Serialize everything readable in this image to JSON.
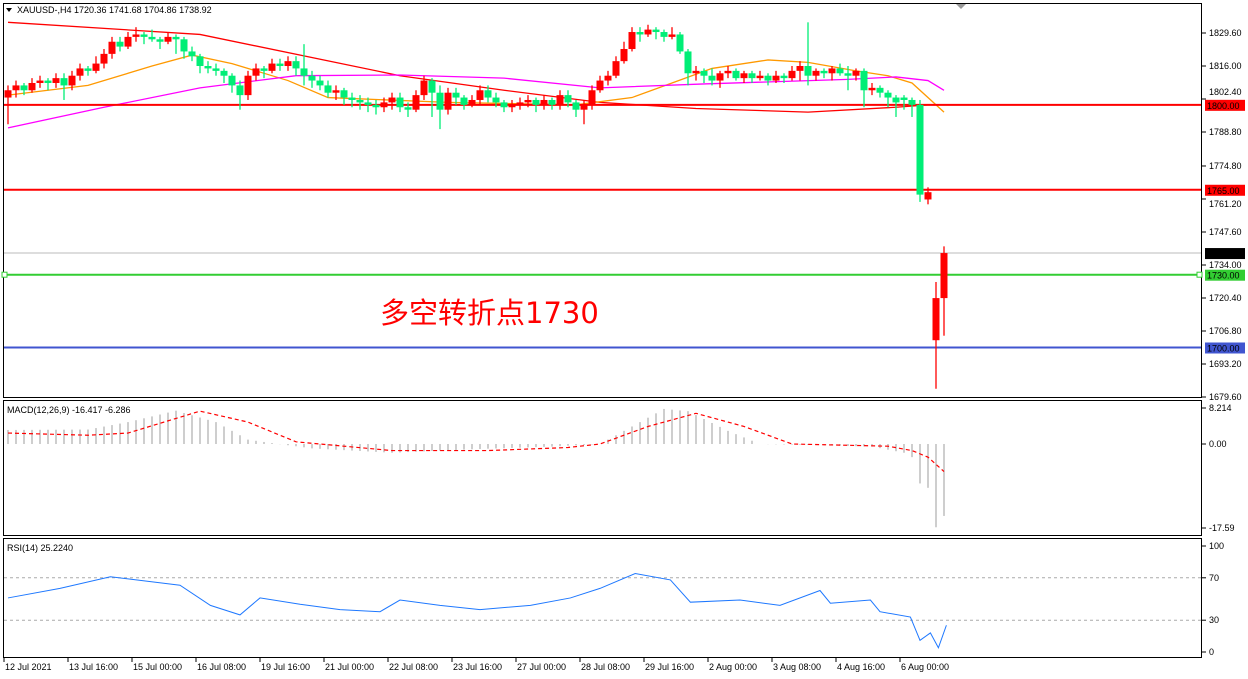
{
  "header": {
    "symbol": "XAUUSD-,H4",
    "open": "1720.36",
    "high": "1741.68",
    "low": "1704.86",
    "close": "1738.92"
  },
  "annotation": "多空转折点1730",
  "colors": {
    "bull": "#ff0000",
    "bear": "#00ee76",
    "ma_long": "#ff0000",
    "ma_short": "#ff9900",
    "ma_mid": "#ff00ff",
    "macd_hist": "#b4b4b4",
    "macd_signal": "#ff0000",
    "rsi": "#1e78ff"
  },
  "chart_data": [
    {
      "type": "candlestick",
      "title": "XAUUSD-,H4",
      "ylim": [
        1679.6,
        1836
      ],
      "y_ticks": [
        "1829.60",
        "1816.00",
        "1802.40",
        "1788.80",
        "1774.80",
        "1761.20",
        "1747.60",
        "1734.00",
        "1720.40",
        "1706.80",
        "1693.20",
        "1679.60"
      ],
      "x_ticks": [
        "12 Jul 2021",
        "13 Jul 16:00",
        "15 Jul 00:00",
        "16 Jul 08:00",
        "19 Jul 16:00",
        "21 Jul 00:00",
        "22 Jul 08:00",
        "23 Jul 16:00",
        "27 Jul 00:00",
        "28 Jul 08:00",
        "29 Jul 16:00",
        "2 Aug 00:00",
        "3 Aug 08:00",
        "4 Aug 16:00",
        "6 Aug 00:00"
      ],
      "ohlc": [
        [
          1803,
          1808,
          1792,
          1806
        ],
        [
          1806,
          1810,
          1803,
          1808
        ],
        [
          1808,
          1809,
          1804,
          1806
        ],
        [
          1806,
          1811,
          1805,
          1809
        ],
        [
          1809,
          1812,
          1807,
          1810
        ],
        [
          1810,
          1811,
          1806,
          1809
        ],
        [
          1809,
          1813,
          1807,
          1811
        ],
        [
          1811,
          1813,
          1802,
          1808
        ],
        [
          1808,
          1814,
          1806,
          1812
        ],
        [
          1812,
          1817,
          1810,
          1815
        ],
        [
          1815,
          1816,
          1812,
          1814
        ],
        [
          1814,
          1820,
          1813,
          1817
        ],
        [
          1817,
          1823,
          1815,
          1821
        ],
        [
          1821,
          1828,
          1819,
          1826
        ],
        [
          1826,
          1828,
          1822,
          1824
        ],
        [
          1824,
          1830,
          1823,
          1828
        ],
        [
          1828,
          1832,
          1826,
          1829
        ],
        [
          1829,
          1830,
          1825,
          1828
        ],
        [
          1828,
          1831,
          1826,
          1827
        ],
        [
          1827,
          1828,
          1823,
          1826
        ],
        [
          1826,
          1830,
          1825,
          1828
        ],
        [
          1828,
          1829,
          1821,
          1827
        ],
        [
          1827,
          1828,
          1819,
          1822
        ],
        [
          1822,
          1824,
          1818,
          1820
        ],
        [
          1820,
          1821,
          1813,
          1816
        ],
        [
          1816,
          1818,
          1813,
          1815
        ],
        [
          1815,
          1817,
          1812,
          1814
        ],
        [
          1814,
          1815,
          1809,
          1812
        ],
        [
          1812,
          1813,
          1805,
          1808
        ],
        [
          1808,
          1810,
          1798,
          1804
        ],
        [
          1804,
          1814,
          1802,
          1812
        ],
        [
          1812,
          1817,
          1810,
          1815
        ],
        [
          1815,
          1816,
          1811,
          1814
        ],
        [
          1814,
          1819,
          1813,
          1817
        ],
        [
          1817,
          1819,
          1814,
          1816
        ],
        [
          1816,
          1820,
          1814,
          1818
        ],
        [
          1818,
          1820,
          1812,
          1815
        ],
        [
          1815,
          1825,
          1808,
          1812
        ],
        [
          1812,
          1814,
          1807,
          1810
        ],
        [
          1810,
          1812,
          1806,
          1808
        ],
        [
          1808,
          1810,
          1803,
          1805
        ],
        [
          1805,
          1808,
          1802,
          1806
        ],
        [
          1806,
          1807,
          1800,
          1803
        ],
        [
          1803,
          1805,
          1799,
          1802
        ],
        [
          1802,
          1804,
          1798,
          1801
        ],
        [
          1801,
          1803,
          1797,
          1800
        ],
        [
          1800,
          1802,
          1796,
          1799
        ],
        [
          1799,
          1803,
          1797,
          1801
        ],
        [
          1801,
          1805,
          1798,
          1803
        ],
        [
          1803,
          1805,
          1797,
          1799
        ],
        [
          1799,
          1801,
          1795,
          1798
        ],
        [
          1798,
          1806,
          1797,
          1804
        ],
        [
          1804,
          1812,
          1802,
          1810
        ],
        [
          1810,
          1811,
          1795,
          1805
        ],
        [
          1805,
          1808,
          1790,
          1798
        ],
        [
          1798,
          1807,
          1796,
          1805
        ],
        [
          1805,
          1807,
          1800,
          1803
        ],
        [
          1803,
          1804,
          1798,
          1800
        ],
        [
          1800,
          1804,
          1799,
          1802
        ],
        [
          1802,
          1808,
          1800,
          1806
        ],
        [
          1806,
          1808,
          1801,
          1803
        ],
        [
          1803,
          1805,
          1799,
          1801
        ],
        [
          1801,
          1802,
          1797,
          1799
        ],
        [
          1799,
          1802,
          1797,
          1800
        ],
        [
          1800,
          1803,
          1798,
          1801
        ],
        [
          1801,
          1804,
          1799,
          1802
        ],
        [
          1802,
          1803,
          1797,
          1800
        ],
        [
          1800,
          1804,
          1798,
          1802
        ],
        [
          1802,
          1803,
          1798,
          1800
        ],
        [
          1800,
          1806,
          1798,
          1804
        ],
        [
          1804,
          1806,
          1799,
          1801
        ],
        [
          1801,
          1802,
          1795,
          1798
        ],
        [
          1798,
          1802,
          1792,
          1800
        ],
        [
          1800,
          1808,
          1798,
          1806
        ],
        [
          1806,
          1812,
          1805,
          1810
        ],
        [
          1810,
          1814,
          1808,
          1812
        ],
        [
          1812,
          1820,
          1811,
          1818
        ],
        [
          1818,
          1826,
          1817,
          1823
        ],
        [
          1823,
          1832,
          1822,
          1830
        ],
        [
          1830,
          1832,
          1826,
          1829
        ],
        [
          1829,
          1833,
          1828,
          1831
        ],
        [
          1831,
          1832,
          1827,
          1830
        ],
        [
          1830,
          1831,
          1826,
          1828
        ],
        [
          1828,
          1832,
          1827,
          1829
        ],
        [
          1829,
          1830,
          1821,
          1822
        ],
        [
          1822,
          1823,
          1808,
          1813
        ],
        [
          1813,
          1816,
          1810,
          1814
        ],
        [
          1814,
          1815,
          1809,
          1812
        ],
        [
          1812,
          1815,
          1808,
          1810
        ],
        [
          1810,
          1814,
          1807,
          1813
        ],
        [
          1813,
          1816,
          1811,
          1814
        ],
        [
          1814,
          1815,
          1810,
          1811
        ],
        [
          1811,
          1814,
          1809,
          1813
        ],
        [
          1813,
          1814,
          1809,
          1811
        ],
        [
          1811,
          1814,
          1810,
          1812
        ],
        [
          1812,
          1813,
          1808,
          1810
        ],
        [
          1810,
          1814,
          1809,
          1812
        ],
        [
          1812,
          1813,
          1809,
          1811
        ],
        [
          1811,
          1816,
          1810,
          1814
        ],
        [
          1814,
          1818,
          1810,
          1816
        ],
        [
          1816,
          1834,
          1808,
          1812
        ],
        [
          1812,
          1815,
          1810,
          1814
        ],
        [
          1814,
          1815,
          1811,
          1813
        ],
        [
          1813,
          1816,
          1810,
          1815
        ],
        [
          1815,
          1817,
          1812,
          1813
        ],
        [
          1813,
          1816,
          1806,
          1812
        ],
        [
          1812,
          1815,
          1810,
          1814
        ],
        [
          1814,
          1815,
          1799,
          1806
        ],
        [
          1806,
          1809,
          1804,
          1807
        ],
        [
          1807,
          1808,
          1803,
          1805
        ],
        [
          1805,
          1806,
          1799,
          1803
        ],
        [
          1803,
          1804,
          1795,
          1801
        ],
        [
          1803,
          1804,
          1798,
          1802
        ],
        [
          1802,
          1803,
          1795,
          1800
        ],
        [
          1800,
          1802,
          1760,
          1763
        ],
        [
          1761,
          1766,
          1759,
          1764
        ],
        [
          1703,
          1727,
          1683,
          1720.36
        ],
        [
          1720.36,
          1741.68,
          1704.86,
          1738.92
        ]
      ],
      "moving_averages": [
        {
          "color": "#ff0000",
          "points": [
            [
              0,
              1834
            ],
            [
              24,
              1829
            ],
            [
              49,
              1812
            ],
            [
              62,
              1806
            ],
            [
              74,
              1801
            ],
            [
              86,
              1798.5
            ],
            [
              100,
              1797
            ],
            [
              111,
              1799
            ],
            [
              115,
              1800
            ]
          ]
        },
        {
          "color": "#ff9900",
          "points": [
            [
              0,
              1804
            ],
            [
              10,
              1808
            ],
            [
              18,
              1816
            ],
            [
              23,
              1820.5
            ],
            [
              28,
              1817
            ],
            [
              35,
              1810
            ],
            [
              40,
              1803
            ],
            [
              55,
              1801
            ],
            [
              71,
              1800
            ],
            [
              78,
              1803
            ],
            [
              83,
              1809
            ],
            [
              88,
              1815
            ],
            [
              95,
              1818.5
            ],
            [
              100,
              1817.5
            ],
            [
              106,
              1814
            ],
            [
              110,
              1812
            ],
            [
              113,
              1809
            ],
            [
              117,
              1797
            ]
          ]
        },
        {
          "color": "#ff00ff",
          "points": [
            [
              0,
              1790.5
            ],
            [
              12,
              1799
            ],
            [
              24,
              1807
            ],
            [
              36,
              1812
            ],
            [
              49,
              1812.3
            ],
            [
              62,
              1811
            ],
            [
              74,
              1807
            ],
            [
              87,
              1808.6
            ],
            [
              105,
              1810.5
            ],
            [
              111,
              1811.5
            ],
            [
              115,
              1810
            ],
            [
              117,
              1806
            ]
          ]
        }
      ],
      "horizontal_lines": [
        {
          "value": 1800,
          "label": "1800.00",
          "color": "#ff0000"
        },
        {
          "value": 1765,
          "label": "1765.00",
          "color": "#ff0000"
        },
        {
          "value": 1730,
          "label": "1730.00",
          "color": "#32cd32"
        },
        {
          "value": 1700,
          "label": "1700.00",
          "color": "#4055d0"
        }
      ],
      "bid_line": {
        "value": 1738.92,
        "label": "1738.92",
        "color": "#000000"
      }
    },
    {
      "type": "bar+line",
      "title": "MACD(12,26,9) -16.417 -6.286",
      "ylim": [
        -19,
        9.5
      ],
      "y_ticks": [
        "8.214",
        "0.00",
        "-17.59"
      ],
      "histogram": [
        [
          0,
          3.2
        ],
        [
          10,
          3.3
        ],
        [
          15,
          5
        ],
        [
          21,
          7.6
        ],
        [
          26,
          5
        ],
        [
          30,
          1
        ],
        [
          33,
          0.2
        ],
        [
          38,
          -1
        ],
        [
          48,
          -2
        ],
        [
          58,
          -1.2
        ],
        [
          68,
          -0.6
        ],
        [
          74,
          0
        ],
        [
          78,
          4
        ],
        [
          82,
          8
        ],
        [
          85,
          7.5
        ],
        [
          90,
          3
        ],
        [
          94,
          0
        ],
        [
          100,
          -0.2
        ],
        [
          108,
          -0.6
        ],
        [
          112,
          -2
        ],
        [
          113,
          -3
        ],
        [
          114,
          -9
        ],
        [
          115,
          -10
        ],
        [
          116,
          -19
        ],
        [
          117,
          -16.417
        ]
      ],
      "signal": [
        [
          0,
          2.5
        ],
        [
          10,
          2
        ],
        [
          15,
          2.5
        ],
        [
          24,
          7.5
        ],
        [
          30,
          5
        ],
        [
          36,
          0.5
        ],
        [
          48,
          -1.5
        ],
        [
          60,
          -1.5
        ],
        [
          70,
          -0.8
        ],
        [
          74,
          0
        ],
        [
          80,
          4
        ],
        [
          86,
          7
        ],
        [
          92,
          4
        ],
        [
          98,
          0
        ],
        [
          110,
          -0.5
        ],
        [
          113,
          -1.5
        ],
        [
          115,
          -3
        ],
        [
          117,
          -6.286
        ]
      ]
    },
    {
      "type": "line",
      "title": "RSI(14) 25.2240",
      "ylim": [
        0,
        100
      ],
      "y_ticks": [
        "100",
        "70",
        "30",
        "0"
      ],
      "levels": [
        70,
        30
      ],
      "points": [
        [
          0,
          51
        ],
        [
          6.5,
          60
        ],
        [
          12.8,
          71
        ],
        [
          21.5,
          63
        ],
        [
          25.3,
          44
        ],
        [
          29,
          35
        ],
        [
          31.5,
          51
        ],
        [
          36.5,
          45
        ],
        [
          41.5,
          40
        ],
        [
          46.5,
          38
        ],
        [
          49,
          49
        ],
        [
          54,
          44
        ],
        [
          59,
          40
        ],
        [
          65.3,
          44
        ],
        [
          70.3,
          51
        ],
        [
          74,
          60
        ],
        [
          78.4,
          74
        ],
        [
          82.8,
          68
        ],
        [
          85.3,
          47
        ],
        [
          91.5,
          49
        ],
        [
          96.5,
          44
        ],
        [
          101.5,
          58
        ],
        [
          102.8,
          46
        ],
        [
          107.8,
          49
        ],
        [
          109,
          38
        ],
        [
          112.8,
          33
        ],
        [
          114,
          11
        ],
        [
          115.3,
          18
        ],
        [
          116.3,
          4
        ],
        [
          117.3,
          25.224
        ]
      ]
    }
  ]
}
